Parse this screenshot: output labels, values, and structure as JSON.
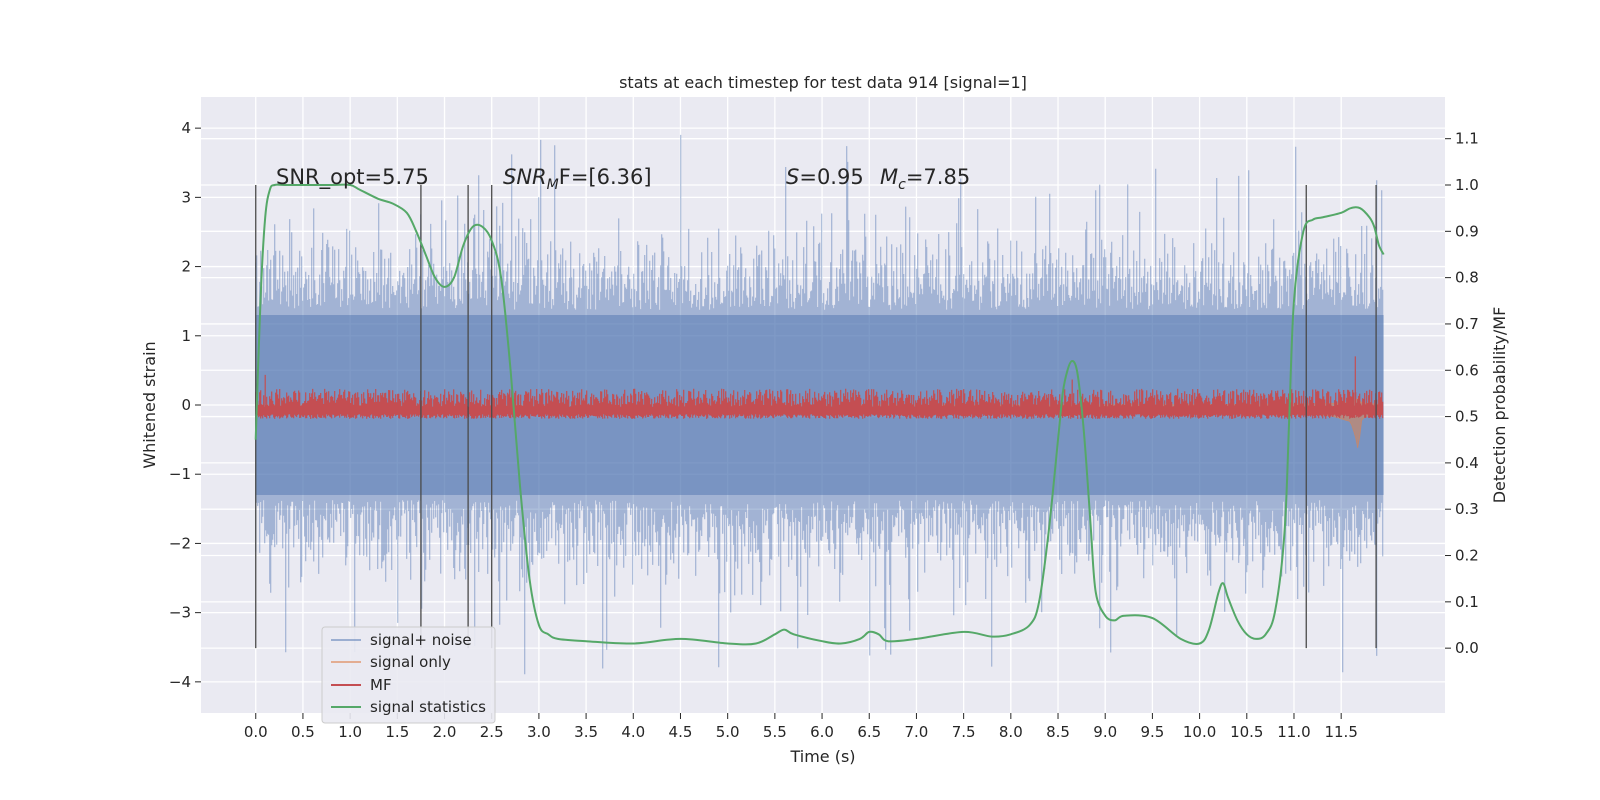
{
  "chart_data": {
    "type": "line",
    "title": "stats at each timestep for test data 914 [signal=1]",
    "xlabel": "Time (s)",
    "ylabel_left": "Whitened strain",
    "ylabel_right": "Detection probability/MF",
    "xlim": [
      -0.58,
      12.6
    ],
    "ylim_left": [
      -4.45,
      4.45
    ],
    "ylim_right": [
      -0.14,
      1.19
    ],
    "x_ticks": [
      0.0,
      0.5,
      1.0,
      1.5,
      2.0,
      2.5,
      3.0,
      3.5,
      4.0,
      4.5,
      5.0,
      5.5,
      6.0,
      6.5,
      7.0,
      7.5,
      8.0,
      8.5,
      9.0,
      9.5,
      10.0,
      10.5,
      11.0,
      11.5
    ],
    "x_tick_labels": [
      "0.0",
      "0.5",
      "1.0",
      "1.5",
      "2.0",
      "2.5",
      "3.0",
      "3.5",
      "4.0",
      "4.5",
      "5.0",
      "5.5",
      "6.0",
      "6.5",
      "7.0",
      "7.5",
      "8.0",
      "8.5",
      "9.0",
      "9.5",
      "10.0",
      "10.5",
      "11.0",
      "11.5"
    ],
    "y_left_ticks": [
      -4,
      -3,
      -2,
      -1,
      0,
      1,
      2,
      3,
      4
    ],
    "y_left_tick_labels": [
      "−4",
      "−3",
      "−2",
      "−1",
      "0",
      "1",
      "2",
      "3",
      "4"
    ],
    "y_right_ticks": [
      0.0,
      0.1,
      0.2,
      0.3,
      0.4,
      0.5,
      0.6,
      0.7,
      0.8,
      0.9,
      1.0,
      1.1
    ],
    "y_right_tick_labels": [
      "0.0",
      "0.1",
      "0.2",
      "0.3",
      "0.4",
      "0.5",
      "0.6",
      "0.7",
      "0.8",
      "0.9",
      "1.0",
      "1.1"
    ],
    "grid": true,
    "legend_position": "bottom-left",
    "annotations": {
      "snr_opt": "SNR_opt=5.75",
      "snr_mf_main": "SNR",
      "snr_mf_sub": "M",
      "snr_mf_rest": "F=[6.36]",
      "s_main": "S",
      "s_rest": "=0.95",
      "mc_main": "M",
      "mc_sub": "c",
      "mc_rest": "=7.85"
    },
    "vertical_markers": [
      0.0,
      1.75,
      2.25,
      2.5,
      11.13,
      11.87
    ],
    "marker_range_right": [
      0.0,
      1.0
    ],
    "series": [
      {
        "name": "signal+ noise",
        "color": "#4c72b0",
        "style": "dense noise band",
        "x_range": [
          0.0,
          11.95
        ],
        "core_range": [
          -1.3,
          1.3
        ],
        "typical_peaks": [
          -2.5,
          2.5
        ],
        "extreme_range": [
          -4.0,
          4.1
        ]
      },
      {
        "name": "signal only",
        "color": "#dd8452",
        "style": "chirp envelope",
        "x": [
          0.0,
          2.0,
          4.0,
          6.0,
          7.0,
          8.0,
          9.0,
          10.0,
          10.5,
          11.0,
          11.4,
          11.6,
          11.65,
          11.68,
          11.72,
          11.95
        ],
        "amplitude": [
          0.0,
          0.0,
          0.0,
          0.003,
          0.006,
          0.012,
          0.025,
          0.05,
          0.07,
          0.1,
          0.16,
          0.24,
          0.45,
          0.65,
          0.2,
          0.05
        ]
      },
      {
        "name": "MF",
        "color": "#c44e52",
        "style": "noisy band",
        "x_range": [
          0.0,
          11.95
        ],
        "axis": "right",
        "base": 0.52,
        "typical_range": [
          0.5,
          0.56
        ],
        "peaks": {
          "x": [
            11.65,
            0.1,
            8.65
          ],
          "y": [
            0.63,
            0.59,
            0.58
          ]
        }
      },
      {
        "name": "signal statistics",
        "color": "#55a868",
        "axis": "right",
        "x": [
          0.0,
          0.05,
          0.1,
          0.15,
          0.2,
          0.3,
          0.5,
          0.8,
          1.0,
          1.1,
          1.3,
          1.45,
          1.6,
          1.7,
          1.8,
          1.9,
          2.0,
          2.1,
          2.2,
          2.3,
          2.4,
          2.5,
          2.6,
          2.7,
          2.8,
          2.9,
          3.0,
          3.1,
          3.2,
          3.5,
          4.0,
          4.5,
          5.0,
          5.3,
          5.5,
          5.6,
          5.7,
          6.0,
          6.2,
          6.4,
          6.5,
          6.6,
          6.7,
          7.0,
          7.5,
          7.8,
          8.0,
          8.2,
          8.3,
          8.4,
          8.5,
          8.55,
          8.6,
          8.65,
          8.7,
          8.75,
          8.8,
          8.85,
          8.9,
          9.0,
          9.1,
          9.2,
          9.5,
          9.8,
          10.0,
          10.1,
          10.2,
          10.25,
          10.3,
          10.4,
          10.5,
          10.6,
          10.7,
          10.8,
          10.9,
          10.95,
          11.0,
          11.1,
          11.2,
          11.3,
          11.5,
          11.6,
          11.7,
          11.8,
          11.85,
          11.9,
          11.95
        ],
        "y": [
          0.45,
          0.75,
          0.93,
          0.99,
          1.0,
          1.0,
          1.0,
          1.0,
          1.0,
          0.99,
          0.97,
          0.96,
          0.94,
          0.9,
          0.85,
          0.8,
          0.78,
          0.8,
          0.87,
          0.91,
          0.91,
          0.88,
          0.8,
          0.6,
          0.35,
          0.15,
          0.05,
          0.03,
          0.02,
          0.015,
          0.01,
          0.02,
          0.01,
          0.01,
          0.03,
          0.04,
          0.03,
          0.015,
          0.01,
          0.02,
          0.035,
          0.03,
          0.015,
          0.02,
          0.035,
          0.025,
          0.03,
          0.05,
          0.1,
          0.25,
          0.45,
          0.55,
          0.6,
          0.62,
          0.6,
          0.52,
          0.4,
          0.25,
          0.12,
          0.07,
          0.06,
          0.07,
          0.065,
          0.02,
          0.01,
          0.04,
          0.12,
          0.14,
          0.11,
          0.06,
          0.03,
          0.02,
          0.03,
          0.08,
          0.25,
          0.5,
          0.75,
          0.9,
          0.925,
          0.93,
          0.94,
          0.95,
          0.95,
          0.93,
          0.91,
          0.87,
          0.85
        ]
      }
    ]
  }
}
